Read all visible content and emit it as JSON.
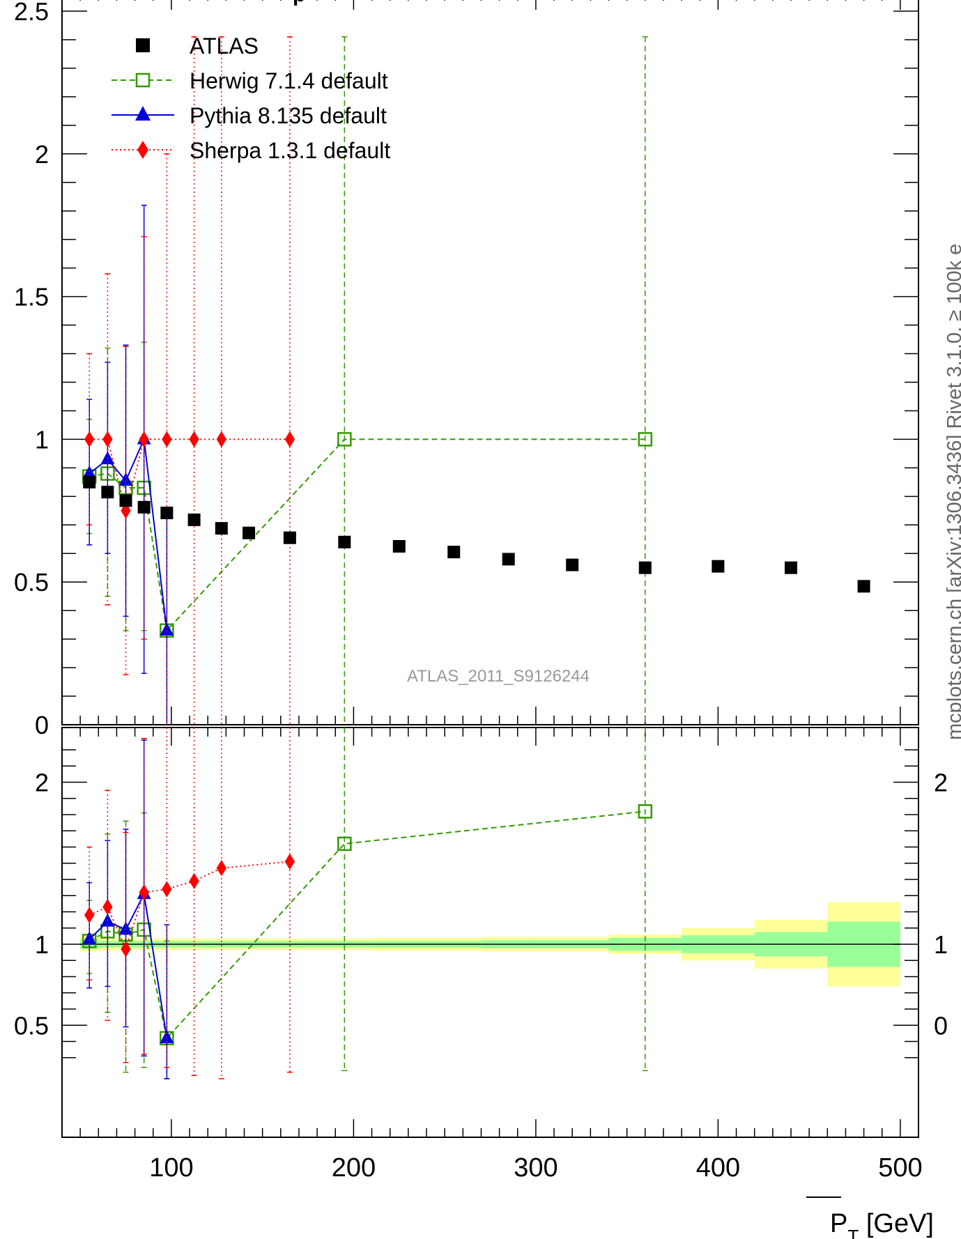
{
  "chart_data": [
    {
      "type": "scatter",
      "panel": "main",
      "title": "",
      "top_text": "p",
      "xlabel": "",
      "ylabel": "",
      "ylim": [
        0,
        2.5
      ],
      "xlim": [
        40,
        510
      ],
      "y_tick_labels": [
        "0",
        "0.5",
        "1",
        "1.5",
        "2",
        "2.5"
      ],
      "annotation": "ATLAS_2011_S9126244",
      "side_text": "mcplots.cern.ch [arXiv:1306.3436]    Rivet 3.1.0, ≥ 100k e",
      "legend_position": "top-left",
      "series": [
        {
          "name": "ATLAS",
          "color": "#000000",
          "marker": "square-filled",
          "line": "none",
          "x": [
            55,
            65,
            75,
            85,
            97.5,
            112.5,
            127.5,
            142.5,
            165,
            195,
            225,
            255,
            285,
            320,
            360,
            400,
            440,
            480
          ],
          "y": [
            0.85,
            0.815,
            0.785,
            0.762,
            0.742,
            0.718,
            0.688,
            0.672,
            0.655,
            0.64,
            0.625,
            0.605,
            0.58,
            0.56,
            0.55,
            0.555,
            0.55,
            0.485
          ]
        },
        {
          "name": "Herwig 7.1.4 default",
          "color": "#339900",
          "marker": "square-open",
          "line": "dashed",
          "x": [
            55,
            65,
            75,
            85,
            97.5,
            195,
            360
          ],
          "y": [
            0.87,
            0.88,
            0.83,
            0.83,
            0.33,
            1.0,
            1.0
          ],
          "err_low": [
            0.2,
            0.43,
            0.5,
            0.5,
            0.33,
            1.0,
            1.0
          ],
          "err_high": [
            0.2,
            0.44,
            0.5,
            0.51,
            0.4,
            1.41,
            1.41
          ]
        },
        {
          "name": "Pythia 8.135 default",
          "color": "#0000dd",
          "marker": "triangle-filled",
          "line": "solid",
          "x": [
            55,
            65,
            75,
            85,
            97.5
          ],
          "y": [
            0.88,
            0.93,
            0.855,
            1.0,
            0.33
          ],
          "err_low": [
            0.25,
            0.33,
            0.475,
            0.82,
            0.33
          ],
          "err_high": [
            0.26,
            0.34,
            0.475,
            0.82,
            0.4
          ]
        },
        {
          "name": "Sherpa 1.3.1 default",
          "color": "#ff0000",
          "marker": "diamond-filled",
          "line": "dotted",
          "x": [
            55,
            65,
            75,
            85,
            97.5,
            112.5,
            127.5,
            165
          ],
          "y": [
            1.0,
            1.0,
            0.75,
            1.0,
            1.0,
            1.0,
            1.0,
            1.0
          ],
          "err_low": [
            0.3,
            0.58,
            0.575,
            0.7,
            1.0,
            1.0,
            1.0,
            1.0
          ],
          "err_high": [
            0.3,
            0.58,
            0.575,
            0.71,
            1.0,
            1.41,
            1.41,
            1.41
          ]
        }
      ]
    },
    {
      "type": "scatter",
      "panel": "ratio",
      "title": "",
      "xlabel": "P_T [GeV]",
      "xlabel_main": "P",
      "xlabel_sub": "T",
      "xlabel_unit": " [GeV]",
      "ylabel": "",
      "xlim": [
        40,
        510
      ],
      "ylim": [
        0.24,
        2.3
      ],
      "x_tick_labels": [
        "100",
        "200",
        "300",
        "400",
        "500"
      ],
      "y_tick_labels_left": [
        "0.5",
        "1",
        "2"
      ],
      "y_tick_labels_right": [
        "0",
        "1",
        "2"
      ],
      "band_edges": [
        50,
        60,
        70,
        80,
        90,
        105,
        120,
        135,
        150,
        180,
        210,
        240,
        270,
        300,
        340,
        380,
        420,
        460,
        500
      ],
      "band_inner": [
        0.03,
        0.02,
        0.02,
        0.02,
        0.02,
        0.02,
        0.02,
        0.02,
        0.02,
        0.02,
        0.02,
        0.02,
        0.025,
        0.025,
        0.04,
        0.055,
        0.075,
        0.14
      ],
      "band_outer": [
        0.045,
        0.04,
        0.035,
        0.035,
        0.035,
        0.035,
        0.035,
        0.035,
        0.035,
        0.035,
        0.04,
        0.04,
        0.045,
        0.045,
        0.06,
        0.1,
        0.15,
        0.26
      ],
      "series": [
        {
          "name": "Herwig 7.1.4 default",
          "color": "#339900",
          "marker": "square-open",
          "line": "dashed",
          "x": [
            55,
            65,
            75,
            85,
            97.5,
            195,
            360
          ],
          "y": [
            1.02,
            1.08,
            1.06,
            1.09,
            0.42,
            1.62,
            1.82
          ],
          "err_low": [
            0.2,
            0.5,
            0.85,
            0.85,
            0.25,
            1.4,
            1.6
          ],
          "err_high": [
            0.25,
            0.6,
            0.7,
            0.72,
            0.6,
            1.6,
            1.6
          ]
        },
        {
          "name": "Pythia 8.135 default",
          "color": "#0000dd",
          "marker": "triangle-filled",
          "line": "solid",
          "x": [
            55,
            65,
            75,
            85,
            97.5
          ],
          "y": [
            1.03,
            1.14,
            1.09,
            1.31,
            0.42
          ],
          "err_low": [
            0.3,
            0.4,
            0.6,
            1.0,
            0.25
          ],
          "err_high": [
            0.35,
            0.5,
            0.62,
            0.95,
            0.7
          ]
        },
        {
          "name": "Sherpa 1.3.1 default",
          "color": "#ff0000",
          "marker": "diamond-filled",
          "line": "dotted",
          "x": [
            55,
            65,
            75,
            85,
            97.5,
            112.5,
            127.5,
            165
          ],
          "y": [
            1.18,
            1.23,
            0.97,
            1.32,
            1.34,
            1.39,
            1.47,
            1.51
          ],
          "err_low": [
            0.4,
            0.7,
            0.7,
            1.0,
            1.1,
            1.2,
            1.3,
            1.3
          ],
          "err_high": [
            0.42,
            0.72,
            0.72,
            0.95,
            1.0,
            1.0,
            1.0,
            1.0
          ]
        }
      ]
    }
  ]
}
